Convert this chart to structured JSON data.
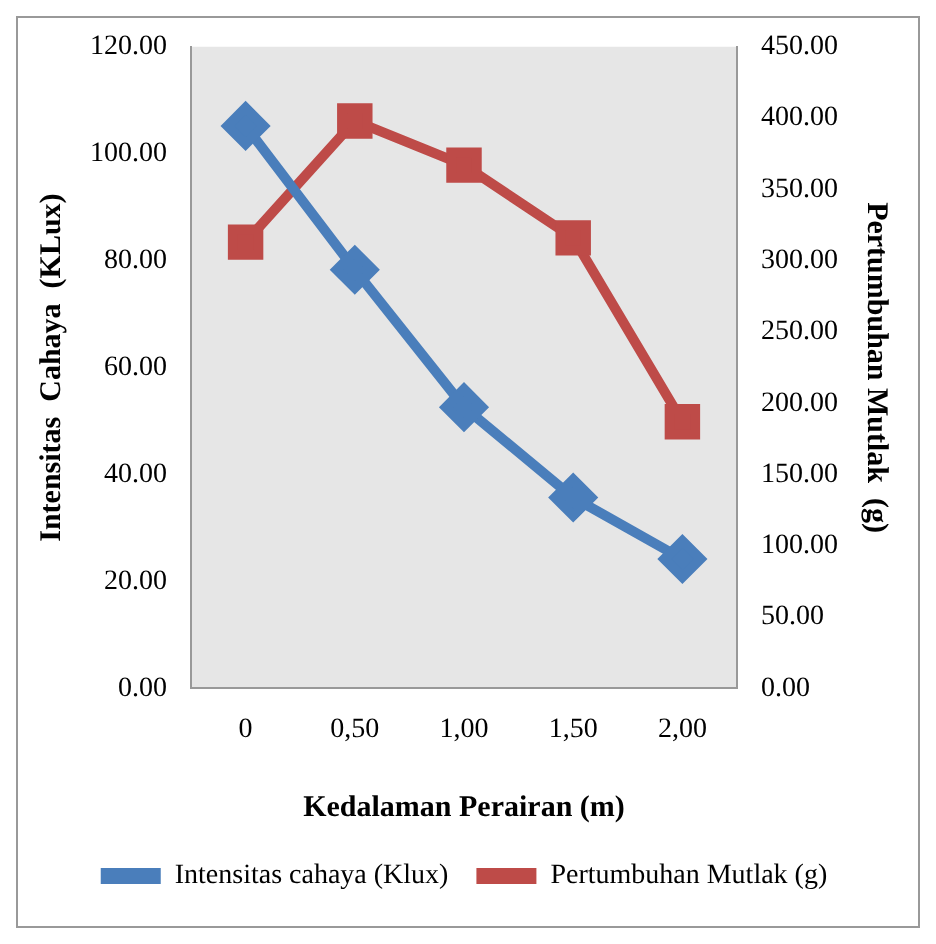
{
  "chart_data": {
    "type": "line",
    "xlabel": "Kedalaman Perairan (m)",
    "ylabel": "Intensitas  Cahaya  (KLux)",
    "y2label": "Pertumbuhan Mutlak  (g)",
    "categories": [
      "0",
      "0,50",
      "1,00",
      "1,50",
      "2,00"
    ],
    "series": [
      {
        "name": "Intensitas cahaya (Klux)",
        "color": "#4a7ebb",
        "values": [
          105.2,
          78.3,
          52.6,
          35.7,
          24.2
        ],
        "marker": "diamond"
      },
      {
        "name": "Pertumbuhan Mutlak (g)",
        "color": "#be4b48",
        "values": [
          313,
          398,
          367,
          316,
          187
        ],
        "axis": "y2",
        "marker": "square"
      }
    ],
    "ylim": [
      0,
      120
    ],
    "yticks": [
      {
        "value": 0,
        "label": "0.00"
      },
      {
        "value": 20,
        "label": "20.00"
      },
      {
        "value": 40,
        "label": "40.00"
      },
      {
        "value": 60,
        "label": "60.00"
      },
      {
        "value": 80,
        "label": "80.00"
      },
      {
        "value": 100,
        "label": "100.00"
      },
      {
        "value": 120,
        "label": "120.00"
      }
    ],
    "y2lim": [
      0,
      450
    ],
    "y2ticks": [
      {
        "value": 0,
        "label": "0.00"
      },
      {
        "value": 50,
        "label": "50.00"
      },
      {
        "value": 100,
        "label": "100.00"
      },
      {
        "value": 150,
        "label": "150.00"
      },
      {
        "value": 200,
        "label": "200.00"
      },
      {
        "value": 250,
        "label": "250.00"
      },
      {
        "value": 300,
        "label": "300.00"
      },
      {
        "value": 350,
        "label": "350.00"
      },
      {
        "value": 400,
        "label": "400.00"
      },
      {
        "value": 450,
        "label": "450.00"
      }
    ],
    "grid": false,
    "legend": "bottom"
  }
}
